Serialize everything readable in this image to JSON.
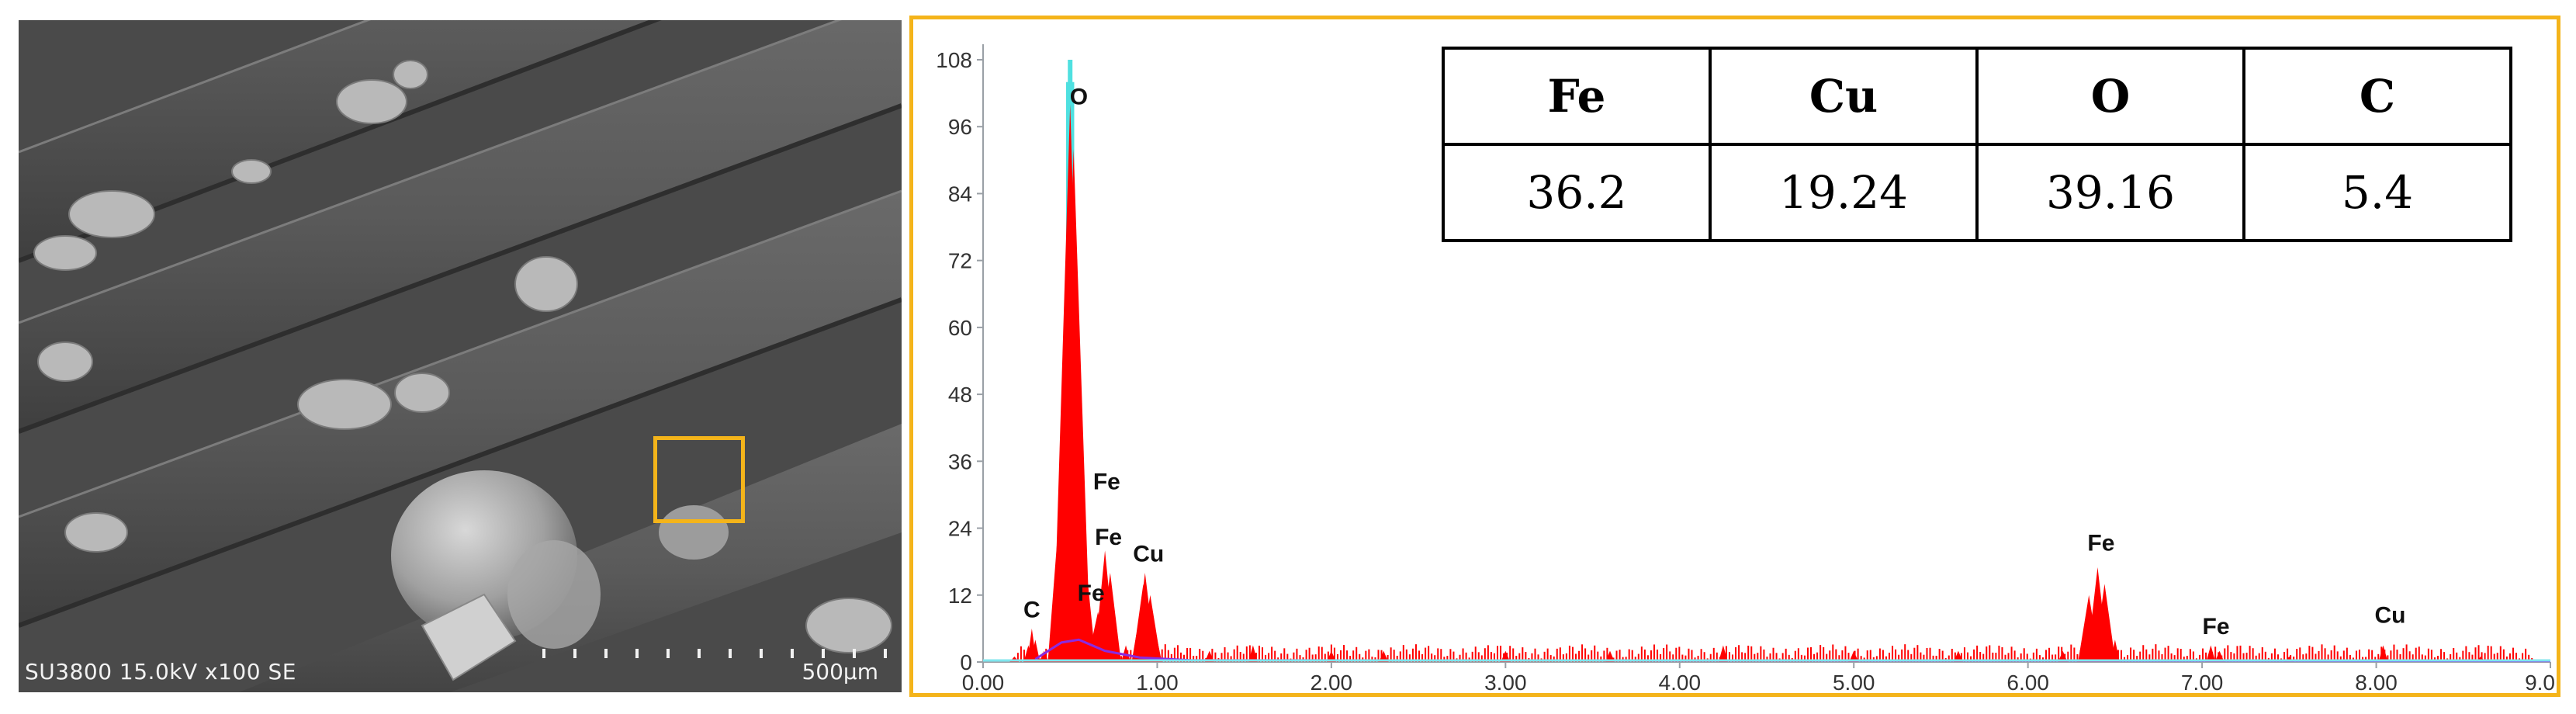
{
  "sem": {
    "caption": "SU3800 15.0kV x100 SE",
    "scale_label": "500µm"
  },
  "table": {
    "headers": [
      "Fe",
      "Cu",
      "O",
      "C"
    ],
    "values": [
      "36.2",
      "19.24",
      "39.16",
      "5.4"
    ]
  },
  "chart_data": {
    "type": "bar",
    "title": "",
    "xlabel": "",
    "ylabel": "",
    "xlim": [
      0,
      9
    ],
    "ylim": [
      0,
      108
    ],
    "x_ticks": [
      "0.00",
      "1.00",
      "2.00",
      "3.00",
      "4.00",
      "5.00",
      "6.00",
      "7.00",
      "8.00",
      "9.0"
    ],
    "y_ticks": [
      "0",
      "12",
      "24",
      "36",
      "48",
      "60",
      "72",
      "84",
      "96",
      "108"
    ],
    "series": [
      {
        "color": "#ff0000",
        "x": [
          0.18,
          0.26,
          0.28,
          0.3,
          0.35,
          0.4,
          0.44,
          0.47,
          0.5,
          0.52,
          0.55,
          0.58,
          0.62,
          0.66,
          0.7,
          0.73,
          0.76,
          0.82,
          0.88,
          0.92,
          0.93,
          0.96,
          1.0,
          1.3,
          1.55,
          2.0,
          2.3,
          3.0,
          3.6,
          4.25,
          5.0,
          5.6,
          6.2,
          6.35,
          6.4,
          6.44,
          6.5,
          7.05,
          7.1,
          7.5,
          8.04,
          8.6
        ],
        "values": [
          1,
          3,
          6,
          4,
          2,
          4,
          10,
          40,
          100,
          92,
          30,
          10,
          7,
          9,
          20,
          16,
          8,
          3,
          5,
          14,
          16,
          12,
          4,
          2,
          3,
          2,
          2,
          2,
          2,
          3,
          2,
          2,
          2,
          12,
          17,
          14,
          4,
          3,
          2,
          1,
          3,
          1
        ]
      }
    ],
    "envelope": {
      "color": "#4fe0e0",
      "x": [
        0.49,
        0.5,
        0.51
      ],
      "values": [
        104,
        108,
        104
      ]
    },
    "background_curve": {
      "color": "#8a2be2",
      "x": [
        0.3,
        0.45,
        0.55,
        0.7,
        0.9,
        1.2,
        9.0
      ],
      "values": [
        0.5,
        3.5,
        4.0,
        2.0,
        0.8,
        0.3,
        0.2
      ]
    },
    "peak_labels": [
      {
        "text": "O",
        "x": 0.55,
        "y": 100
      },
      {
        "text": "C",
        "x": 0.28,
        "y": 8
      },
      {
        "text": "Fe",
        "x": 0.71,
        "y": 31
      },
      {
        "text": "Fe",
        "x": 0.72,
        "y": 21
      },
      {
        "text": "Fe",
        "x": 0.62,
        "y": 11
      },
      {
        "text": "Cu",
        "x": 0.95,
        "y": 18
      },
      {
        "text": "Fe",
        "x": 6.42,
        "y": 20
      },
      {
        "text": "Fe",
        "x": 7.08,
        "y": 5
      },
      {
        "text": "Cu",
        "x": 8.08,
        "y": 7
      }
    ]
  }
}
